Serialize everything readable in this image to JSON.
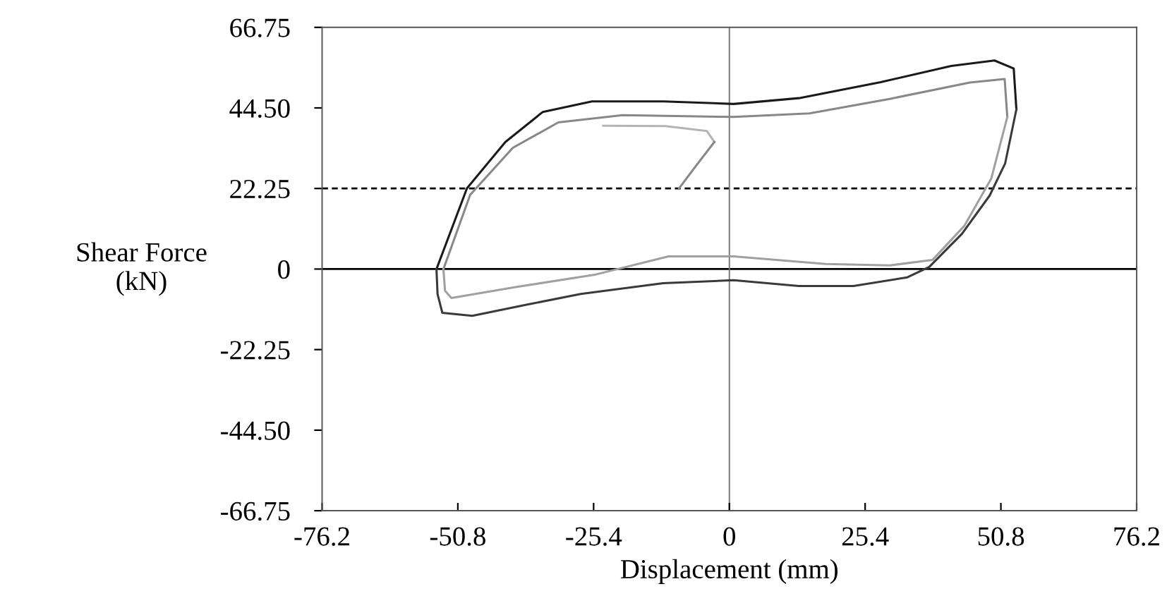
{
  "chart_data": {
    "type": "line",
    "xlabel": "Displacement (mm)",
    "ylabel": "Shear Force\n(kN)",
    "xlim": [
      -76.2,
      76.2
    ],
    "xticks": [
      -76.2,
      -50.8,
      -25.4,
      0,
      25.4,
      50.8,
      76.2
    ],
    "ylim": [
      -66.75,
      66.75
    ],
    "yticks": [
      -66.75,
      {
        "value": -44.5,
        "label": "-44.50"
      },
      -22.25,
      0,
      22.25,
      {
        "value": 44.5,
        "label": "44.50"
      },
      66.75
    ],
    "grid": false,
    "line_style": "solid",
    "ref_lines": [
      {
        "axis": "y",
        "value": 0,
        "color": "#000000",
        "line_style": "solid"
      },
      {
        "axis": "y",
        "value": 22.25,
        "color": "#000000",
        "line_style": "dashed"
      },
      {
        "axis": "x",
        "value": 0,
        "color": "#777777",
        "line_style": "solid"
      }
    ],
    "series": [
      {
        "color": "#1a1a1a",
        "x": [
          -54.8,
          -49.1,
          -41.9,
          -34.9,
          -25.7,
          -12.4,
          0.8,
          13,
          28.3,
          41.5,
          49.6,
          53.2,
          53.7
        ],
        "values": [
          0,
          22.3,
          35.1,
          43.4,
          46.3,
          46.3,
          45.6,
          47.2,
          51.6,
          56.1,
          57.6,
          55.4,
          44.1
        ]
      },
      {
        "color": "#3a3a3a",
        "x": [
          -54.8,
          -54.6,
          -53.7,
          -48.1,
          -37.8,
          -27.8,
          -12.4,
          0.8,
          13,
          23.2,
          33.3,
          37.4,
          43.5,
          48.7,
          51.6,
          53.7
        ],
        "values": [
          0,
          -6.9,
          -12.1,
          -12.9,
          -9.8,
          -6.9,
          -3.9,
          -3.1,
          -4.7,
          -4.7,
          -2.3,
          0.6,
          9.7,
          20.3,
          29.2,
          44.1
        ]
      },
      {
        "color": "#888888",
        "x": [
          -53.5,
          -48.5,
          -40.5,
          -32,
          -20,
          0.8,
          15,
          30,
          45,
          51.5,
          52
        ],
        "values": [
          0,
          20.5,
          33.5,
          40.5,
          42.5,
          42,
          43,
          47,
          51.5,
          52.5,
          42
        ]
      },
      {
        "color": "#a0a0a0",
        "x": [
          -53.5,
          -53.2,
          -52,
          -40,
          -25,
          -11.4,
          0.8,
          18,
          30,
          38,
          44,
          49,
          52
        ],
        "values": [
          0,
          -6,
          -8,
          -5,
          -1.5,
          3.5,
          3.5,
          1.4,
          1,
          2.5,
          12,
          25,
          42
        ]
      },
      {
        "color": "#b4b4b4",
        "x": [
          -23.6,
          -12,
          -4.2,
          -2.8
        ],
        "values": [
          39.6,
          39.5,
          38.1,
          35.1
        ]
      },
      {
        "color": "#888888",
        "x": [
          -9.4,
          -6.5,
          -2.8
        ],
        "values": [
          22.3,
          28,
          35.1
        ]
      }
    ]
  }
}
